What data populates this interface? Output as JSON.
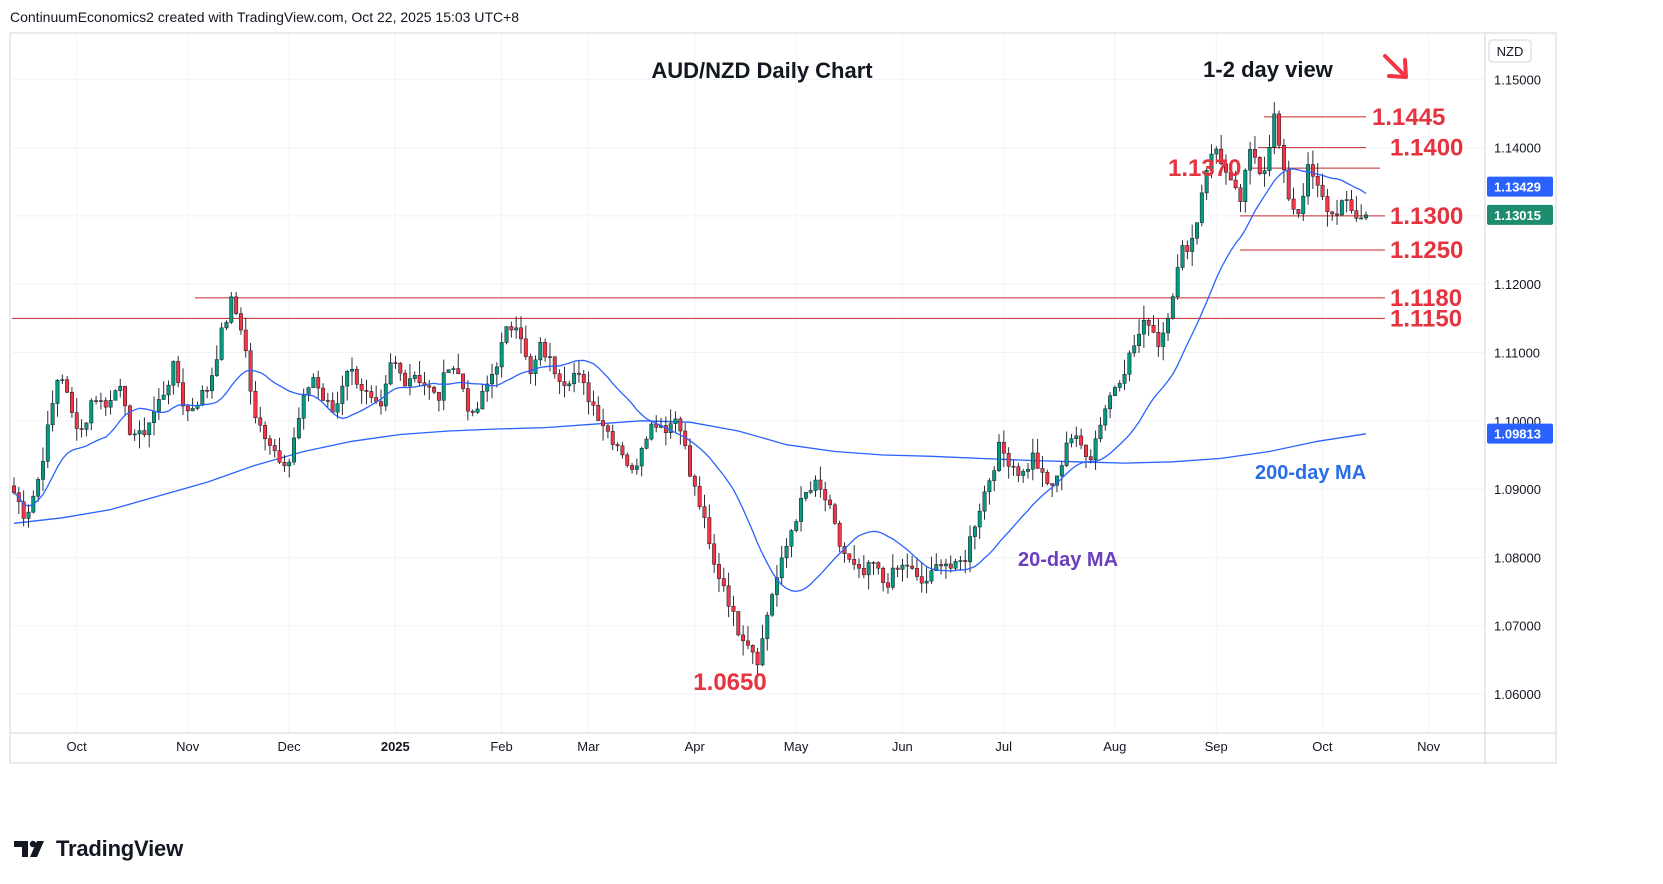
{
  "header": "ContinuumEconomics2 created with TradingView.com, Oct 22, 2025 15:03 UTC+8",
  "brand": "TradingView",
  "colors": {
    "up": "#089981",
    "down": "#f23645",
    "ma20": "#2962ff",
    "ma200": "#2962ff",
    "level_line": "#c62828",
    "level_text": "#e53340",
    "grid": "#f0f3fa",
    "text": "#131722",
    "ma20_label": "#6a3fbd",
    "ma200_label": "#2a6ee6",
    "last_price_bg": "#1e8c6e",
    "ma_price_bg": "#2962ff"
  },
  "chart_data": {
    "type": "candlestick",
    "title": "AUD/NZD Daily Chart",
    "subtitle": "1-2 day view",
    "currency": "NZD",
    "ylim": [
      1.055,
      1.1545
    ],
    "y_ticks": [
      "1.06000",
      "1.07000",
      "1.08000",
      "1.09000",
      "1.10000",
      "1.11000",
      "1.12000",
      "1.13000",
      "1.14000",
      "1.15000"
    ],
    "x_ticks": [
      {
        "label": "Oct",
        "bold": false
      },
      {
        "label": "Nov",
        "bold": false
      },
      {
        "label": "Dec",
        "bold": false
      },
      {
        "label": "2025",
        "bold": true
      },
      {
        "label": "Feb",
        "bold": false
      },
      {
        "label": "Mar",
        "bold": false
      },
      {
        "label": "Apr",
        "bold": false
      },
      {
        "label": "May",
        "bold": false
      },
      {
        "label": "Jun",
        "bold": false
      },
      {
        "label": "Jul",
        "bold": false
      },
      {
        "label": "Aug",
        "bold": false
      },
      {
        "label": "Sep",
        "bold": false
      },
      {
        "label": "Oct",
        "bold": false
      },
      {
        "label": "Nov",
        "bold": false
      }
    ],
    "close_path": [
      1.0895,
      1.086,
      1.0905,
      1.099,
      1.108,
      1.101,
      1.0985,
      1.104,
      1.102,
      1.106,
      1.099,
      1.0975,
      1.1005,
      1.104,
      1.108,
      1.101,
      1.103,
      1.105,
      1.112,
      1.1175,
      1.113,
      1.1,
      1.098,
      1.095,
      1.094,
      1.101,
      1.107,
      1.103,
      1.101,
      1.108,
      1.106,
      1.103,
      1.101,
      1.109,
      1.106,
      1.107,
      1.105,
      1.103,
      1.109,
      1.106,
      1.1,
      1.104,
      1.108,
      1.113,
      1.115,
      1.106,
      1.111,
      1.108,
      1.106,
      1.107,
      1.104,
      1.101,
      1.098,
      1.096,
      1.092,
      1.098,
      1.1,
      1.099,
      1.101,
      1.092,
      1.087,
      1.079,
      1.076,
      1.07,
      1.068,
      1.065,
      1.074,
      1.079,
      1.085,
      1.089,
      1.0905,
      1.088,
      1.082,
      1.079,
      1.077,
      1.079,
      1.076,
      1.078,
      1.079,
      1.076,
      1.077,
      1.08,
      1.078,
      1.08,
      1.086,
      1.091,
      1.096,
      1.094,
      1.092,
      1.095,
      1.0905,
      1.091,
      1.098,
      1.0965,
      1.095,
      1.101,
      1.105,
      1.108,
      1.112,
      1.115,
      1.111,
      1.118,
      1.125,
      1.127,
      1.137,
      1.14,
      1.135,
      1.132,
      1.14,
      1.136,
      1.1445,
      1.134,
      1.13,
      1.137,
      1.133,
      1.13,
      1.132,
      1.13,
      1.1301
    ],
    "candles_note": "daily candles interpolated from visible price path; total 281 sessions",
    "series": [
      {
        "name": "20-day MA",
        "current": "1.13429"
      },
      {
        "name": "200-day MA",
        "current": "1.09813"
      }
    ],
    "ma200_path": [
      1.085,
      1.0858,
      1.087,
      1.089,
      1.091,
      1.0935,
      1.0955,
      1.097,
      1.098,
      1.0985,
      1.0988,
      1.099,
      1.0995,
      1.1,
      1.0998,
      1.0985,
      1.0965,
      1.0955,
      1.095,
      1.0948,
      1.0945,
      1.0942,
      1.094,
      1.0938,
      1.094,
      1.0945,
      1.0955,
      1.097,
      1.0981
    ],
    "last_price": "1.13015",
    "levels": [
      {
        "value": 1.1445,
        "label": "1.1445"
      },
      {
        "value": 1.14,
        "label": "1.1400"
      },
      {
        "value": 1.137,
        "label": "1.1370"
      },
      {
        "value": 1.13,
        "label": "1.1300"
      },
      {
        "value": 1.125,
        "label": "1.1250"
      },
      {
        "value": 1.118,
        "label": "1.1180"
      },
      {
        "value": 1.115,
        "label": "1.1150"
      }
    ],
    "annotations": [
      {
        "text": "1.0650",
        "value": 1.065
      },
      {
        "text": "20-day MA"
      },
      {
        "text": "200-day MA"
      }
    ],
    "arrow": "down-right"
  }
}
